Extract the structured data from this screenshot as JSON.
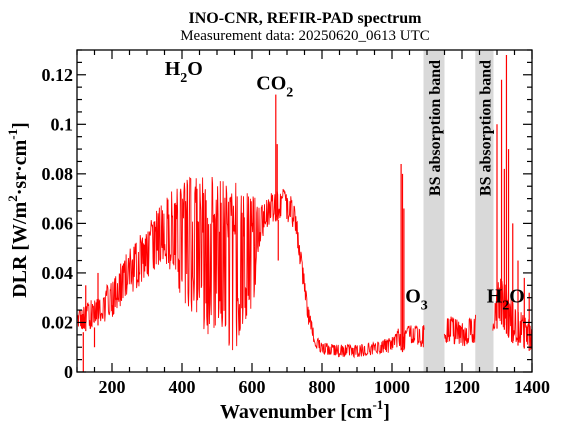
{
  "chart_data": {
    "type": "line",
    "title": "INO-CNR, REFIR-PAD spectrum",
    "subtitle": "Measurement data: 20250620_0613 UTC",
    "xlabel": {
      "main": "Wavenumber [cm",
      "sup": "-1",
      "close": "]"
    },
    "ylabel": {
      "p1": "DLR [W/m",
      "sup1": "2",
      "p2": "·sr·cm",
      "sup2": "-1",
      "close": "]"
    },
    "xlim": [
      100,
      1400
    ],
    "ylim": [
      0,
      0.13
    ],
    "xticks": [
      "200",
      "400",
      "600",
      "800",
      "1000",
      "1200",
      "1400"
    ],
    "yticks": [
      "0",
      "0.02",
      "0.04",
      "0.06",
      "0.08",
      "0.1",
      "0.12"
    ],
    "grid": false,
    "color": "#ff0000",
    "band_color": "#d9d9d9",
    "bands": [
      {
        "label": "BS absorption band",
        "x": [
          1090,
          1150
        ]
      },
      {
        "label": "BS absorption band",
        "x": [
          1238,
          1290
        ]
      }
    ],
    "annotations": [
      {
        "id": "h2o-left",
        "main": "H",
        "sub": "2",
        "tail": "O",
        "x": 405,
        "y": 0.12
      },
      {
        "id": "co2",
        "main": "CO",
        "sub": "2",
        "tail": "",
        "x": 665,
        "y": 0.114
      },
      {
        "id": "o3",
        "main": "O",
        "sub": "3",
        "tail": "",
        "x": 1070,
        "y": 0.028
      },
      {
        "id": "h2o-right",
        "main": "H",
        "sub": "2",
        "tail": "O",
        "x": 1325,
        "y": 0.028
      }
    ],
    "series": [
      {
        "envelope_upper": [
          [
            100,
            0.025
          ],
          [
            150,
            0.03
          ],
          [
            200,
            0.038
          ],
          [
            250,
            0.05
          ],
          [
            300,
            0.06
          ],
          [
            350,
            0.07
          ],
          [
            400,
            0.078
          ],
          [
            450,
            0.079
          ],
          [
            500,
            0.079
          ],
          [
            550,
            0.077
          ],
          [
            600,
            0.072
          ],
          [
            620,
            0.068
          ],
          [
            640,
            0.07
          ],
          [
            660,
            0.073
          ],
          [
            680,
            0.075
          ],
          [
            700,
            0.073
          ],
          [
            720,
            0.07
          ],
          [
            740,
            0.05
          ],
          [
            760,
            0.028
          ],
          [
            780,
            0.015
          ],
          [
            800,
            0.012
          ],
          [
            850,
            0.011
          ],
          [
            900,
            0.011
          ],
          [
            950,
            0.012
          ],
          [
            1000,
            0.014
          ],
          [
            1020,
            0.018
          ],
          [
            1030,
            0.016
          ],
          [
            1050,
            0.02
          ],
          [
            1080,
            0.018
          ],
          [
            1090,
            0.02
          ],
          [
            1150,
            0.024
          ],
          [
            1200,
            0.02
          ],
          [
            1238,
            0.023
          ],
          [
            1290,
            0.03
          ],
          [
            1310,
            0.04
          ],
          [
            1340,
            0.03
          ],
          [
            1370,
            0.025
          ],
          [
            1400,
            0.02
          ]
        ],
        "envelope_lower": [
          [
            100,
            0.015
          ],
          [
            150,
            0.018
          ],
          [
            200,
            0.022
          ],
          [
            250,
            0.03
          ],
          [
            300,
            0.038
          ],
          [
            350,
            0.045
          ],
          [
            400,
            0.03
          ],
          [
            450,
            0.015
          ],
          [
            500,
            0.01
          ],
          [
            550,
            0.008
          ],
          [
            600,
            0.02
          ],
          [
            620,
            0.05
          ],
          [
            640,
            0.058
          ],
          [
            660,
            0.06
          ],
          [
            680,
            0.062
          ],
          [
            700,
            0.06
          ],
          [
            720,
            0.058
          ],
          [
            740,
            0.04
          ],
          [
            760,
            0.02
          ],
          [
            780,
            0.01
          ],
          [
            800,
            0.007
          ],
          [
            850,
            0.006
          ],
          [
            900,
            0.006
          ],
          [
            950,
            0.007
          ],
          [
            1000,
            0.008
          ],
          [
            1020,
            0.01
          ],
          [
            1030,
            0.008
          ],
          [
            1050,
            0.012
          ],
          [
            1080,
            0.01
          ],
          [
            1090,
            0.01
          ],
          [
            1150,
            0.012
          ],
          [
            1200,
            0.01
          ],
          [
            1238,
            0.012
          ],
          [
            1290,
            0.015
          ],
          [
            1310,
            0.02
          ],
          [
            1340,
            0.012
          ],
          [
            1370,
            0.01
          ],
          [
            1400,
            0.008
          ]
        ],
        "spikes": [
          [
            118,
            0.0
          ],
          [
            125,
            0.035
          ],
          [
            150,
            0.01
          ],
          [
            160,
            0.04
          ],
          [
            668,
            0.112
          ],
          [
            672,
            0.092
          ],
          [
            675,
            0.045
          ],
          [
            1026,
            0.084
          ],
          [
            1030,
            0.08
          ],
          [
            1034,
            0.066
          ],
          [
            1300,
            0.1
          ],
          [
            1313,
            0.118
          ],
          [
            1321,
            0.082
          ],
          [
            1327,
            0.128
          ],
          [
            1333,
            0.09
          ],
          [
            1345,
            0.06
          ],
          [
            1360,
            0.045
          ],
          [
            1378,
            0.038
          ],
          [
            1392,
            0.032
          ]
        ]
      }
    ]
  }
}
